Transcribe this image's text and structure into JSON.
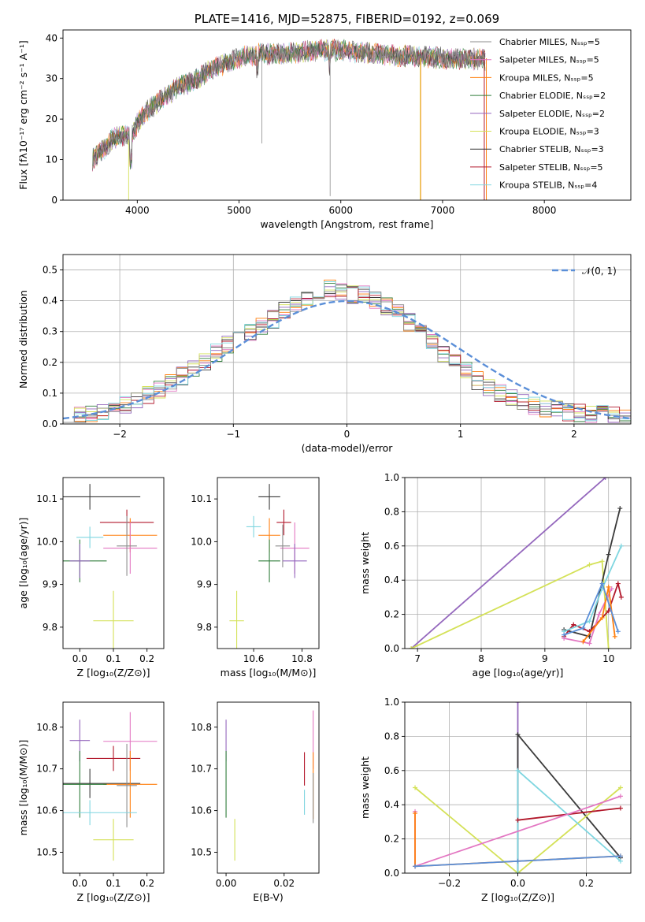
{
  "palette": {
    "chabrier_miles": "#8c8c8c",
    "salpeter_miles": "#e377c2",
    "kroupa_miles": "#ff7f0e",
    "chabrier_elodie": "#2f7d3a",
    "salpeter_elodie": "#9467bd",
    "kroupa_elodie": "#d4e157",
    "chabrier_stelib": "#3a3a3a",
    "salpeter_stelib": "#b2182b",
    "kroupa_stelib": "#7fd6e0",
    "normal_curve": "#5b8fd8"
  },
  "chart_data": [
    {
      "id": "spectrum",
      "type": "line",
      "title": "PLATE=1416, MJD=52875, FIBERID=0192, z=0.069",
      "xlabel": "wavelength [Angstrom, rest frame]",
      "ylabel": "Flux [fλ10⁻¹⁷ erg cm⁻² s⁻¹ A⁻¹]",
      "xlim": [
        3270,
        8850
      ],
      "ylim": [
        0,
        42
      ],
      "xticks": [
        4000,
        5000,
        6000,
        7000,
        8000
      ],
      "yticks": [
        0,
        10,
        20,
        30,
        40
      ],
      "grid": false,
      "legend_position": "right",
      "continuum": {
        "x": [
          3560,
          3650,
          3750,
          3850,
          3950,
          4000,
          4100,
          4200,
          4300,
          4400,
          4500,
          4600,
          4700,
          4800,
          4900,
          5000,
          5200,
          5400,
          5600,
          5800,
          6000,
          6200,
          6400,
          6600,
          6800,
          7000,
          7200,
          7420
        ],
        "y": [
          10,
          12,
          15,
          16,
          16,
          19,
          22,
          24,
          26,
          28,
          29,
          30,
          32,
          33,
          34,
          35,
          36,
          36,
          36.5,
          37,
          37,
          36.5,
          36,
          35.5,
          35.5,
          35,
          35,
          34.5
        ]
      },
      "series": [
        {
          "name": "Chabrier MILES, N_SSP=5"
        },
        {
          "name": "Salpeter MILES, N_SSP=5"
        },
        {
          "name": "Kroupa MILES, N_SSP=5"
        },
        {
          "name": "Chabrier ELODIE, N_SSP=2"
        },
        {
          "name": "Salpeter ELODIE, N_SSP=2"
        },
        {
          "name": "Kroupa ELODIE, N_SSP=3"
        },
        {
          "name": "Chabrier STELIB, N_SSP=3"
        },
        {
          "name": "Salpeter STELIB, N_SSP=5"
        },
        {
          "name": "Kroupa STELIB, N_SSP=4"
        }
      ]
    },
    {
      "id": "residual_hist",
      "type": "bar",
      "xlabel": "(data-model)/error",
      "ylabel": "Normed distribution",
      "xlim": [
        -2.5,
        2.5
      ],
      "ylim": [
        0,
        0.55
      ],
      "xticks": [
        -2,
        -1,
        0,
        1,
        2
      ],
      "yticks": [
        0.0,
        0.1,
        0.2,
        0.3,
        0.4,
        0.5
      ],
      "grid": true,
      "bin_width": 0.1,
      "bins_start": -2.5,
      "legend_position": "top-right",
      "reference": {
        "name": "𝒩(0, 1)",
        "mu": 0,
        "sigma": 1
      },
      "base_heights": [
        0.02,
        0.025,
        0.03,
        0.035,
        0.045,
        0.06,
        0.075,
        0.095,
        0.11,
        0.13,
        0.155,
        0.18,
        0.2,
        0.23,
        0.26,
        0.28,
        0.3,
        0.32,
        0.34,
        0.37,
        0.39,
        0.4,
        0.42,
        0.44,
        0.43,
        0.42,
        0.42,
        0.4,
        0.38,
        0.36,
        0.33,
        0.3,
        0.27,
        0.23,
        0.2,
        0.17,
        0.14,
        0.12,
        0.1,
        0.085,
        0.07,
        0.06,
        0.05,
        0.045,
        0.04,
        0.035,
        0.03,
        0.03,
        0.025,
        0.02
      ]
    },
    {
      "id": "age_vs_Z",
      "type": "scatter",
      "xlabel": "Z [log₁₀(Z/Z⊙)]",
      "ylabel": "age  [log₁₀(age/yr)]",
      "xlim": [
        -0.05,
        0.25
      ],
      "ylim": [
        9.75,
        10.15
      ],
      "xticks": [
        0.0,
        0.1,
        0.2
      ],
      "yticks": [
        9.8,
        9.9,
        10.0,
        10.1
      ],
      "grid": false,
      "points": [
        {
          "s": 6,
          "x": 0.03,
          "y": 10.105,
          "xe": 0.15,
          "ye": 0.03
        },
        {
          "s": 7,
          "x": 0.14,
          "y": 10.045,
          "xe": 0.08,
          "ye": 0.03
        },
        {
          "s": 2,
          "x": 0.15,
          "y": 10.015,
          "xe": 0.08,
          "ye": 0.04
        },
        {
          "s": 8,
          "x": 0.03,
          "y": 10.01,
          "xe": 0.04,
          "ye": 0.025
        },
        {
          "s": 1,
          "x": 0.15,
          "y": 9.985,
          "xe": 0.08,
          "ye": 0.06
        },
        {
          "s": 0,
          "x": 0.14,
          "y": 9.99,
          "xe": 0.03,
          "ye": 0.07
        },
        {
          "s": 3,
          "x": 0.0,
          "y": 9.955,
          "xe": 0.08,
          "ye": 0.05
        },
        {
          "s": 4,
          "x": 0.0,
          "y": 9.955,
          "xe": 0.03,
          "ye": 0.04
        },
        {
          "s": 5,
          "x": 0.1,
          "y": 9.815,
          "xe": 0.06,
          "ye": 0.07
        }
      ]
    },
    {
      "id": "age_vs_mass",
      "type": "scatter",
      "xlabel": "mass [log₁₀(M/M⊙)]",
      "ylabel": "",
      "xlim": [
        10.45,
        10.87
      ],
      "ylim": [
        9.75,
        10.15
      ],
      "xticks": [
        10.6,
        10.8
      ],
      "yticks": [
        9.8,
        9.9,
        10.0,
        10.1
      ],
      "grid": false,
      "points": [
        {
          "s": 6,
          "x": 10.665,
          "y": 10.105,
          "xe": 0.045,
          "ye": 0.03
        },
        {
          "s": 7,
          "x": 10.725,
          "y": 10.045,
          "xe": 0.03,
          "ye": 0.03
        },
        {
          "s": 8,
          "x": 10.6,
          "y": 10.035,
          "xe": 0.03,
          "ye": 0.025
        },
        {
          "s": 2,
          "x": 10.665,
          "y": 10.015,
          "xe": 0.045,
          "ye": 0.04
        },
        {
          "s": 1,
          "x": 10.77,
          "y": 9.985,
          "xe": 0.06,
          "ye": 0.06
        },
        {
          "s": 0,
          "x": 10.72,
          "y": 9.99,
          "xe": 0.03,
          "ye": 0.05
        },
        {
          "s": 4,
          "x": 10.77,
          "y": 9.955,
          "xe": 0.05,
          "ye": 0.04
        },
        {
          "s": 3,
          "x": 10.665,
          "y": 9.955,
          "xe": 0.045,
          "ye": 0.05
        },
        {
          "s": 5,
          "x": 10.53,
          "y": 9.815,
          "xe": 0.03,
          "ye": 0.07
        }
      ]
    },
    {
      "id": "weight_vs_age",
      "type": "line",
      "xlabel": "age  [log₁₀(age/yr)]",
      "ylabel": "mass weight",
      "xlim": [
        6.8,
        10.35
      ],
      "ylim": [
        0,
        1
      ],
      "xticks": [
        7,
        8,
        9,
        10
      ],
      "yticks": [
        0.0,
        0.2,
        0.4,
        0.6,
        0.8,
        1.0
      ],
      "grid": true,
      "lines": [
        {
          "s": 4,
          "x": [
            6.9,
            9.95
          ],
          "y": [
            0.0,
            1.0
          ]
        },
        {
          "s": 5,
          "x": [
            6.9,
            9.7,
            9.9,
            10.0
          ],
          "y": [
            0.0,
            0.49,
            0.51,
            0.0
          ]
        },
        {
          "s": 6,
          "x": [
            9.3,
            9.7,
            10.0,
            10.18
          ],
          "y": [
            0.11,
            0.07,
            0.55,
            0.82
          ]
        },
        {
          "s": 7,
          "x": [
            9.3,
            9.45,
            9.7,
            10.0,
            10.15,
            10.2
          ],
          "y": [
            0.07,
            0.14,
            0.1,
            0.22,
            0.38,
            0.3
          ]
        },
        {
          "s": 8,
          "x": [
            9.3,
            9.7,
            9.9,
            10.2
          ],
          "y": [
            0.1,
            0.16,
            0.35,
            0.6
          ]
        },
        {
          "s": 1,
          "x": [
            9.3,
            9.7,
            9.85,
            10.05
          ],
          "y": [
            0.06,
            0.03,
            0.2,
            0.35
          ]
        },
        {
          "s": 2,
          "x": [
            9.6,
            9.9,
            10.0,
            10.1
          ],
          "y": [
            0.04,
            0.18,
            0.36,
            0.07
          ]
        },
        {
          "s": 9,
          "x": [
            9.3,
            9.6,
            9.9,
            10.15
          ],
          "y": [
            0.08,
            0.12,
            0.38,
            0.1
          ]
        }
      ]
    },
    {
      "id": "mass_vs_Z",
      "type": "scatter",
      "xlabel": "Z [log₁₀(Z/Z⊙)]",
      "ylabel": "mass [log₁₀(M/M⊙)]",
      "xlim": [
        -0.05,
        0.25
      ],
      "ylim": [
        10.45,
        10.86
      ],
      "xticks": [
        0.0,
        0.1,
        0.2
      ],
      "yticks": [
        10.5,
        10.6,
        10.7,
        10.8
      ],
      "grid": false,
      "points": [
        {
          "s": 4,
          "x": 0.0,
          "y": 10.768,
          "xe": 0.03,
          "ye": 0.05
        },
        {
          "s": 1,
          "x": 0.15,
          "y": 10.766,
          "xe": 0.08,
          "ye": 0.07
        },
        {
          "s": 7,
          "x": 0.1,
          "y": 10.725,
          "xe": 0.08,
          "ye": 0.03
        },
        {
          "s": 6,
          "x": 0.03,
          "y": 10.665,
          "xe": 0.15,
          "ye": 0.035
        },
        {
          "s": 2,
          "x": 0.15,
          "y": 10.663,
          "xe": 0.08,
          "ye": 0.08
        },
        {
          "s": 3,
          "x": 0.0,
          "y": 10.663,
          "xe": 0.08,
          "ye": 0.08
        },
        {
          "s": 0,
          "x": 0.14,
          "y": 10.66,
          "xe": 0.03,
          "ye": 0.1
        },
        {
          "s": 8,
          "x": 0.03,
          "y": 10.595,
          "xe": 0.14,
          "ye": 0.03
        },
        {
          "s": 5,
          "x": 0.1,
          "y": 10.53,
          "xe": 0.06,
          "ye": 0.05
        }
      ]
    },
    {
      "id": "mass_vs_ebv",
      "type": "scatter",
      "xlabel": "E(B-V)",
      "ylabel": "",
      "xlim": [
        -0.003,
        0.032
      ],
      "ylim": [
        10.45,
        10.86
      ],
      "xticks": [
        0.0,
        0.02
      ],
      "yticks": [
        10.5,
        10.6,
        10.7,
        10.8
      ],
      "grid": false,
      "points": [
        {
          "s": 4,
          "x": 0.0,
          "y": 10.768,
          "xe": 0.0,
          "ye": 0.05
        },
        {
          "s": 3,
          "x": 0.0,
          "y": 10.663,
          "xe": 0.0,
          "ye": 0.08
        },
        {
          "s": 5,
          "x": 0.003,
          "y": 10.53,
          "xe": 0.0,
          "ye": 0.05
        },
        {
          "s": 7,
          "x": 0.027,
          "y": 10.7,
          "xe": 0.0,
          "ye": 0.04
        },
        {
          "s": 8,
          "x": 0.027,
          "y": 10.62,
          "xe": 0.0,
          "ye": 0.03
        },
        {
          "s": 1,
          "x": 0.03,
          "y": 10.77,
          "xe": 0.0,
          "ye": 0.07
        },
        {
          "s": 2,
          "x": 0.03,
          "y": 10.66,
          "xe": 0.0,
          "ye": 0.08
        },
        {
          "s": 0,
          "x": 0.03,
          "y": 10.63,
          "xe": 0.0,
          "ye": 0.06
        }
      ]
    },
    {
      "id": "weight_vs_Z",
      "type": "line",
      "xlabel": "Z [log₁₀(Z/Z⊙)]",
      "ylabel": "mass weight",
      "xlim": [
        -0.33,
        0.33
      ],
      "ylim": [
        0,
        1
      ],
      "xticks": [
        -0.2,
        0.0,
        0.2
      ],
      "yticks": [
        0.0,
        0.2,
        0.4,
        0.6,
        0.8,
        1.0
      ],
      "grid": true,
      "lines": [
        {
          "s": 4,
          "x": [
            0.0,
            0.0
          ],
          "y": [
            0.0,
            1.0
          ]
        },
        {
          "s": 6,
          "x": [
            0.0,
            0.0,
            0.3
          ],
          "y": [
            0.0,
            0.81,
            0.09
          ]
        },
        {
          "s": 5,
          "x": [
            -0.3,
            0.0,
            0.3
          ],
          "y": [
            0.5,
            0.0,
            0.5
          ]
        },
        {
          "s": 8,
          "x": [
            0.0,
            0.0,
            0.3
          ],
          "y": [
            0.0,
            0.6,
            0.07
          ]
        },
        {
          "s": 7,
          "x": [
            0.0,
            0.3
          ],
          "y": [
            0.31,
            0.38
          ]
        },
        {
          "s": 1,
          "x": [
            -0.3,
            -0.3,
            0.3
          ],
          "y": [
            0.36,
            0.04,
            0.45
          ]
        },
        {
          "s": 2,
          "x": [
            -0.3,
            -0.3,
            0.3
          ],
          "y": [
            0.35,
            0.04,
            0.1
          ]
        },
        {
          "s": 9,
          "x": [
            -0.3,
            0.0,
            0.3
          ],
          "y": [
            0.04,
            0.07,
            0.1
          ]
        }
      ]
    }
  ]
}
